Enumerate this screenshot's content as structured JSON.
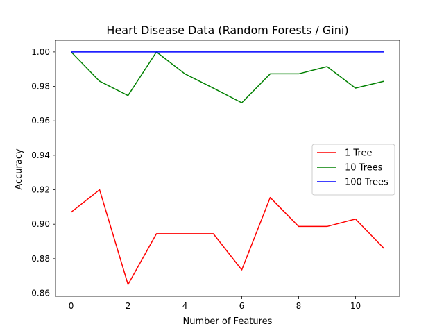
{
  "chart_data": {
    "type": "line",
    "title": "Heart Disease Data (Random Forests / Gini)",
    "xlabel": "Number of Features",
    "ylabel": "Accuracy",
    "xlim": [
      -0.55,
      11.55
    ],
    "ylim": [
      0.8582,
      1.0068
    ],
    "xticks": [
      0,
      2,
      4,
      6,
      8,
      10
    ],
    "yticks": [
      0.86,
      0.88,
      0.9,
      0.92,
      0.94,
      0.96,
      0.98,
      1.0
    ],
    "ytick_labels": [
      "0.86",
      "0.88",
      "0.90",
      "0.92",
      "0.94",
      "0.96",
      "0.98",
      "1.00"
    ],
    "grid": false,
    "legend_position": "center-right",
    "x": [
      0,
      1,
      2,
      3,
      4,
      5,
      6,
      7,
      8,
      9,
      10,
      11
    ],
    "series": [
      {
        "name": "1 Tree",
        "color": "#ff0000",
        "values": [
          0.907,
          0.92,
          0.865,
          0.8945,
          0.8945,
          0.8945,
          0.8735,
          0.9155,
          0.8987,
          0.8987,
          0.903,
          0.886
        ]
      },
      {
        "name": "10 Trees",
        "color": "#008000",
        "values": [
          1.0,
          0.983,
          0.9747,
          1.0,
          0.9873,
          0.979,
          0.9705,
          0.9873,
          0.9873,
          0.9915,
          0.979,
          0.983
        ]
      },
      {
        "name": "100 Trees",
        "color": "#0000ff",
        "values": [
          1.0,
          1.0,
          1.0,
          1.0,
          1.0,
          1.0,
          1.0,
          1.0,
          1.0,
          1.0,
          1.0,
          1.0
        ]
      }
    ]
  }
}
